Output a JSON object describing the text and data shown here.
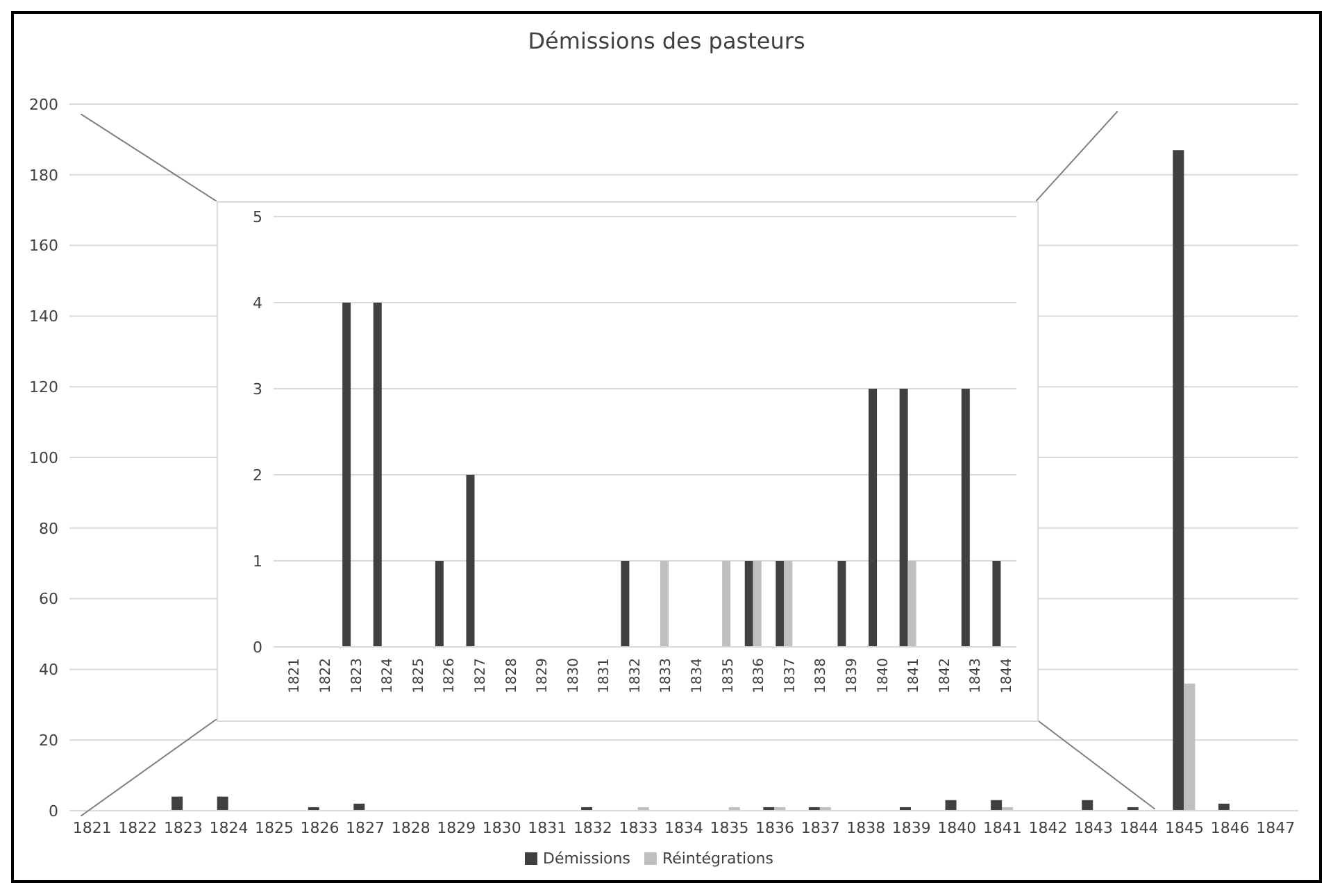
{
  "chart_data": [
    {
      "type": "bar",
      "title": "Démissions des pasteurs",
      "categories": [
        "1821",
        "1822",
        "1823",
        "1824",
        "1825",
        "1826",
        "1827",
        "1828",
        "1829",
        "1830",
        "1831",
        "1832",
        "1833",
        "1834",
        "1835",
        "1836",
        "1837",
        "1838",
        "1839",
        "1840",
        "1841",
        "1842",
        "1843",
        "1844",
        "1845",
        "1846",
        "1847"
      ],
      "series": [
        {
          "name": "Démissions",
          "color": "#404040",
          "values": [
            0,
            0,
            4,
            4,
            0,
            1,
            2,
            0,
            0,
            0,
            0,
            1,
            0,
            0,
            0,
            1,
            1,
            0,
            1,
            3,
            3,
            0,
            3,
            1,
            187,
            2,
            0
          ]
        },
        {
          "name": "Réintégrations",
          "color": "#bfbfbf",
          "values": [
            0,
            0,
            0,
            0,
            0,
            0,
            0,
            0,
            0,
            0,
            0,
            0,
            1,
            0,
            1,
            1,
            1,
            0,
            0,
            0,
            1,
            0,
            0,
            0,
            36,
            0,
            0
          ]
        }
      ],
      "ylim": [
        0,
        200
      ],
      "yticks": [
        0,
        20,
        40,
        60,
        80,
        100,
        120,
        140,
        160,
        180,
        200
      ],
      "grid": "y",
      "legend": "bottom"
    },
    {
      "type": "bar",
      "categories": [
        "1821",
        "1822",
        "1823",
        "1824",
        "1825",
        "1826",
        "1827",
        "1828",
        "1829",
        "1830",
        "1831",
        "1832",
        "1833",
        "1834",
        "1835",
        "1836",
        "1837",
        "1838",
        "1839",
        "1840",
        "1841",
        "1842",
        "1843",
        "1844"
      ],
      "series": [
        {
          "color": "#404040",
          "values": [
            0,
            0,
            4,
            4,
            0,
            1,
            2,
            0,
            0,
            0,
            0,
            1,
            0,
            0,
            0,
            1,
            1,
            0,
            1,
            3,
            3,
            0,
            3,
            1
          ]
        },
        {
          "color": "#bfbfbf",
          "values": [
            0,
            0,
            0,
            0,
            0,
            0,
            0,
            0,
            0,
            0,
            0,
            0,
            1,
            0,
            1,
            1,
            1,
            0,
            0,
            0,
            1,
            0,
            0,
            0
          ]
        }
      ],
      "ylim": [
        0,
        5
      ],
      "yticks": [
        0,
        1,
        2,
        3,
        4,
        5
      ],
      "grid": "y"
    }
  ]
}
